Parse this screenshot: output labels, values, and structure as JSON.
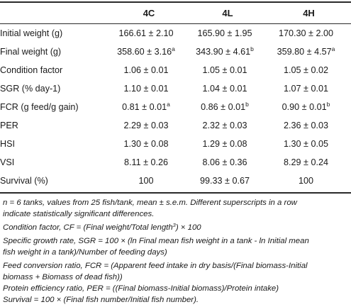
{
  "columns": [
    "4C",
    "4L",
    "4H"
  ],
  "rows": [
    {
      "label": "Initial weight (g)",
      "values": [
        "166.61 ± 2.10",
        "165.90 ± 1.95",
        "170.30 ± 2.00"
      ],
      "sups": [
        "",
        "",
        ""
      ]
    },
    {
      "label": "Final weight (g)",
      "values": [
        "358.60 ± 3.16",
        "343.90 ± 4.61",
        "359.80 ± 4.57"
      ],
      "sups": [
        "a",
        "b",
        "a"
      ]
    },
    {
      "label": "Condition factor",
      "values": [
        "1.06 ± 0.01",
        "1.05 ± 0.01",
        "1.05 ± 0.02"
      ],
      "sups": [
        "",
        "",
        ""
      ]
    },
    {
      "label": "SGR (% day-1)",
      "values": [
        "1.10 ± 0.01",
        "1.04 ± 0.01",
        "1.07 ± 0.01"
      ],
      "sups": [
        "",
        "",
        ""
      ]
    },
    {
      "label": "FCR (g feed/g gain)",
      "values": [
        "0.81 ± 0.01",
        "0.86 ± 0.01",
        "0.90 ± 0.01"
      ],
      "sups": [
        "a",
        "b",
        "b"
      ]
    },
    {
      "label": "PER",
      "values": [
        "2.29 ± 0.03",
        "2.32 ± 0.03",
        "2.36 ± 0.03"
      ],
      "sups": [
        "",
        "",
        ""
      ]
    },
    {
      "label": "HSI",
      "values": [
        "1.30 ± 0.08",
        "1.29 ± 0.08",
        "1.30 ± 0.05"
      ],
      "sups": [
        "",
        "",
        ""
      ]
    },
    {
      "label": "VSI",
      "values": [
        "8.11 ± 0.26",
        "8.06 ± 0.36",
        "8.29 ± 0.24"
      ],
      "sups": [
        "",
        "",
        ""
      ]
    },
    {
      "label": "Survival (%)",
      "values": [
        "100",
        "99.33 ± 0.67",
        "100"
      ],
      "sups": [
        "",
        "",
        ""
      ]
    }
  ],
  "footnotes": {
    "n_line1": "n = 6 tanks, values from 25 fish/tank, mean ± s.e.m. Different superscripts in a row",
    "n_line2": "indicate statistically significant differences.",
    "cf_before": "Condition factor, CF = (Final weight/Total length",
    "cf_sup": "3",
    "cf_after": ") × 100",
    "sgr_line1": "Specific growth rate, SGR = 100 × (ln Final mean fish weight in a tank - ln Initial mean",
    "sgr_line2": "fish weight in a tank)/Number of feeding days)",
    "fcr_line1": "Feed conversion ratio, FCR = (Apparent feed intake in dry basis/(Final biomass-Initial",
    "fcr_line2": "biomass + Biomass of dead fish))",
    "per_line": "Protein efficiency ratio, PER = ((Final biomass-Initial biomass)/Protein intake)",
    "survival_line": "Survival = 100 × (Final fish number/Initial fish number)."
  }
}
